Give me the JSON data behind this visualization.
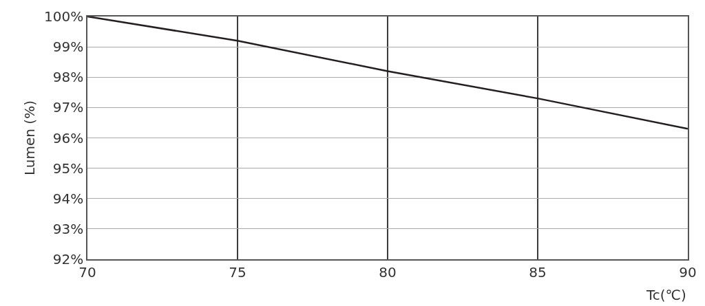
{
  "chart_data": {
    "type": "line",
    "xlabel": "Tc(℃)",
    "ylabel": "Lumen (%)",
    "x": [
      70,
      75,
      80,
      85,
      90
    ],
    "series": [
      {
        "color": "#231f20",
        "values": [
          100,
          99.2,
          98.2,
          97.3,
          96.3
        ]
      }
    ],
    "xlim": [
      70,
      90
    ],
    "xticks": [
      70,
      75,
      80,
      85,
      90
    ],
    "ylim": [
      92,
      100
    ],
    "yticks": [
      {
        "value": 92,
        "label": "92%"
      },
      {
        "value": 93,
        "label": "93%"
      },
      {
        "value": 94,
        "label": "94%"
      },
      {
        "value": 95,
        "label": "95%"
      },
      {
        "value": 96,
        "label": "96%"
      },
      {
        "value": 97,
        "label": "97%"
      },
      {
        "value": 98,
        "label": "98%"
      },
      {
        "value": 99,
        "label": "99%"
      },
      {
        "value": 100,
        "label": "100%"
      }
    ],
    "grid": true,
    "marker": "none",
    "line_style": "solid"
  }
}
